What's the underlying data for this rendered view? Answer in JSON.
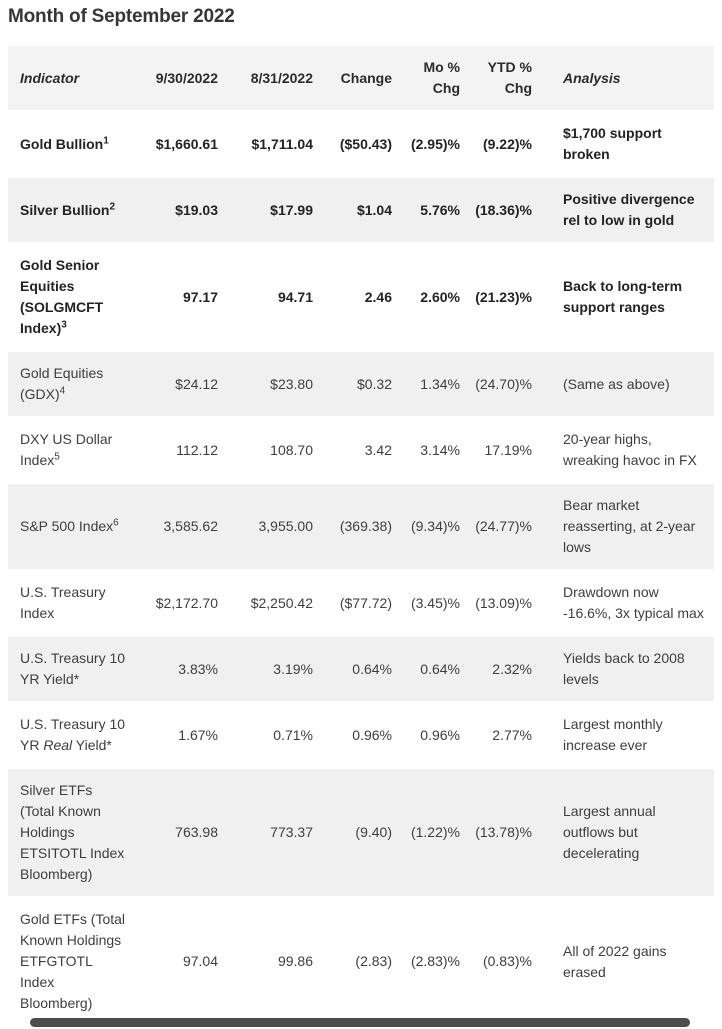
{
  "page": {
    "title": "Month of September 2022"
  },
  "colors": {
    "header_bg": "#f3f3f3",
    "shaded_row_bg": "#f0f0f0",
    "bold_text": "#232323",
    "body_text": "#3e3e3e",
    "scrollbar_thumb": "#4d4d4d"
  },
  "table": {
    "columns": [
      "Indicator",
      "9/30/2022",
      "8/31/2022",
      "Change",
      "Mo % Chg",
      "YTD % Chg",
      "Analysis"
    ],
    "rows": [
      {
        "indicator_parts": [
          {
            "t": "Gold Bullion"
          }
        ],
        "sup": "1",
        "current": "$1,660.61",
        "prior": "$1,711.04",
        "change": "($50.43)",
        "mo_chg": "(2.95)%",
        "ytd_chg": "(9.22)%",
        "analysis": "$1,700 support broken",
        "bold": true,
        "shaded": false
      },
      {
        "indicator_parts": [
          {
            "t": "Silver Bullion"
          }
        ],
        "sup": "2",
        "current": "$19.03",
        "prior": "$17.99",
        "change": "$1.04",
        "mo_chg": "5.76%",
        "ytd_chg": "(18.36)%",
        "analysis": "Positive divergence rel to low in gold",
        "bold": true,
        "shaded": true
      },
      {
        "indicator_parts": [
          {
            "t": "Gold Senior Equities (SOLGMCFT Index)"
          }
        ],
        "sup": "3",
        "current": "97.17",
        "prior": "94.71",
        "change": "2.46",
        "mo_chg": "2.60%",
        "ytd_chg": "(21.23)%",
        "analysis": "Back to long-term support ranges",
        "bold": true,
        "shaded": false
      },
      {
        "indicator_parts": [
          {
            "t": "Gold Equities (GDX)"
          }
        ],
        "sup": "4",
        "current": "$24.12",
        "prior": "$23.80",
        "change": "$0.32",
        "mo_chg": "1.34%",
        "ytd_chg": "(24.70)%",
        "analysis": "(Same as above)",
        "bold": false,
        "shaded": true
      },
      {
        "indicator_parts": [
          {
            "t": "DXY US Dollar Index"
          }
        ],
        "sup": "5",
        "current": "112.12",
        "prior": "108.70",
        "change": "3.42",
        "mo_chg": "3.14%",
        "ytd_chg": "17.19%",
        "analysis": "20-year highs, wreaking havoc in FX",
        "bold": false,
        "shaded": false
      },
      {
        "indicator_parts": [
          {
            "t": "S&P 500 Index"
          }
        ],
        "sup": "6",
        "current": "3,585.62",
        "prior": "3,955.00",
        "change": "(369.38)",
        "mo_chg": "(9.34)%",
        "ytd_chg": "(24.77)%",
        "analysis": "Bear market reasserting, at 2-year lows",
        "bold": false,
        "shaded": true
      },
      {
        "indicator_parts": [
          {
            "t": "U.S. Treasury Index"
          }
        ],
        "sup": "",
        "current": "$2,172.70",
        "prior": "$2,250.42",
        "change": "($77.72)",
        "mo_chg": "(3.45)%",
        "ytd_chg": "(13.09)%",
        "analysis": "Drawdown now -16.6%, 3x typical max",
        "bold": false,
        "shaded": false
      },
      {
        "indicator_parts": [
          {
            "t": "U.S. Treasury 10 YR Yield*"
          }
        ],
        "sup": "",
        "current": "3.83%",
        "prior": "3.19%",
        "change": "0.64%",
        "mo_chg": "0.64%",
        "ytd_chg": "2.32%",
        "analysis": "Yields back to 2008 levels",
        "bold": false,
        "shaded": true
      },
      {
        "indicator_parts": [
          {
            "t": "U.S. Treasury 10 YR "
          },
          {
            "t": "Real",
            "italic": true
          },
          {
            "t": " Yield*"
          }
        ],
        "sup": "",
        "current": "1.67%",
        "prior": "0.71%",
        "change": "0.96%",
        "mo_chg": "0.96%",
        "ytd_chg": "2.77%",
        "analysis": "Largest monthly increase ever",
        "bold": false,
        "shaded": false
      },
      {
        "indicator_parts": [
          {
            "t": "Silver ETFs (Total Known Holdings ETSITOTL Index Bloomberg)"
          }
        ],
        "sup": "",
        "current": "763.98",
        "prior": "773.37",
        "change": "(9.40)",
        "mo_chg": "(1.22)%",
        "ytd_chg": "(13.78)%",
        "analysis": "Largest annual outflows but decelerating",
        "bold": false,
        "shaded": true
      },
      {
        "indicator_parts": [
          {
            "t": "Gold ETFs (Total Known Holdings ETFGTOTL Index Bloomberg)"
          }
        ],
        "sup": "",
        "current": "97.04",
        "prior": "99.86",
        "change": "(2.83)",
        "mo_chg": "(2.83)%",
        "ytd_chg": "(0.83)%",
        "analysis": "All of 2022 gains erased",
        "bold": false,
        "shaded": false
      }
    ]
  }
}
